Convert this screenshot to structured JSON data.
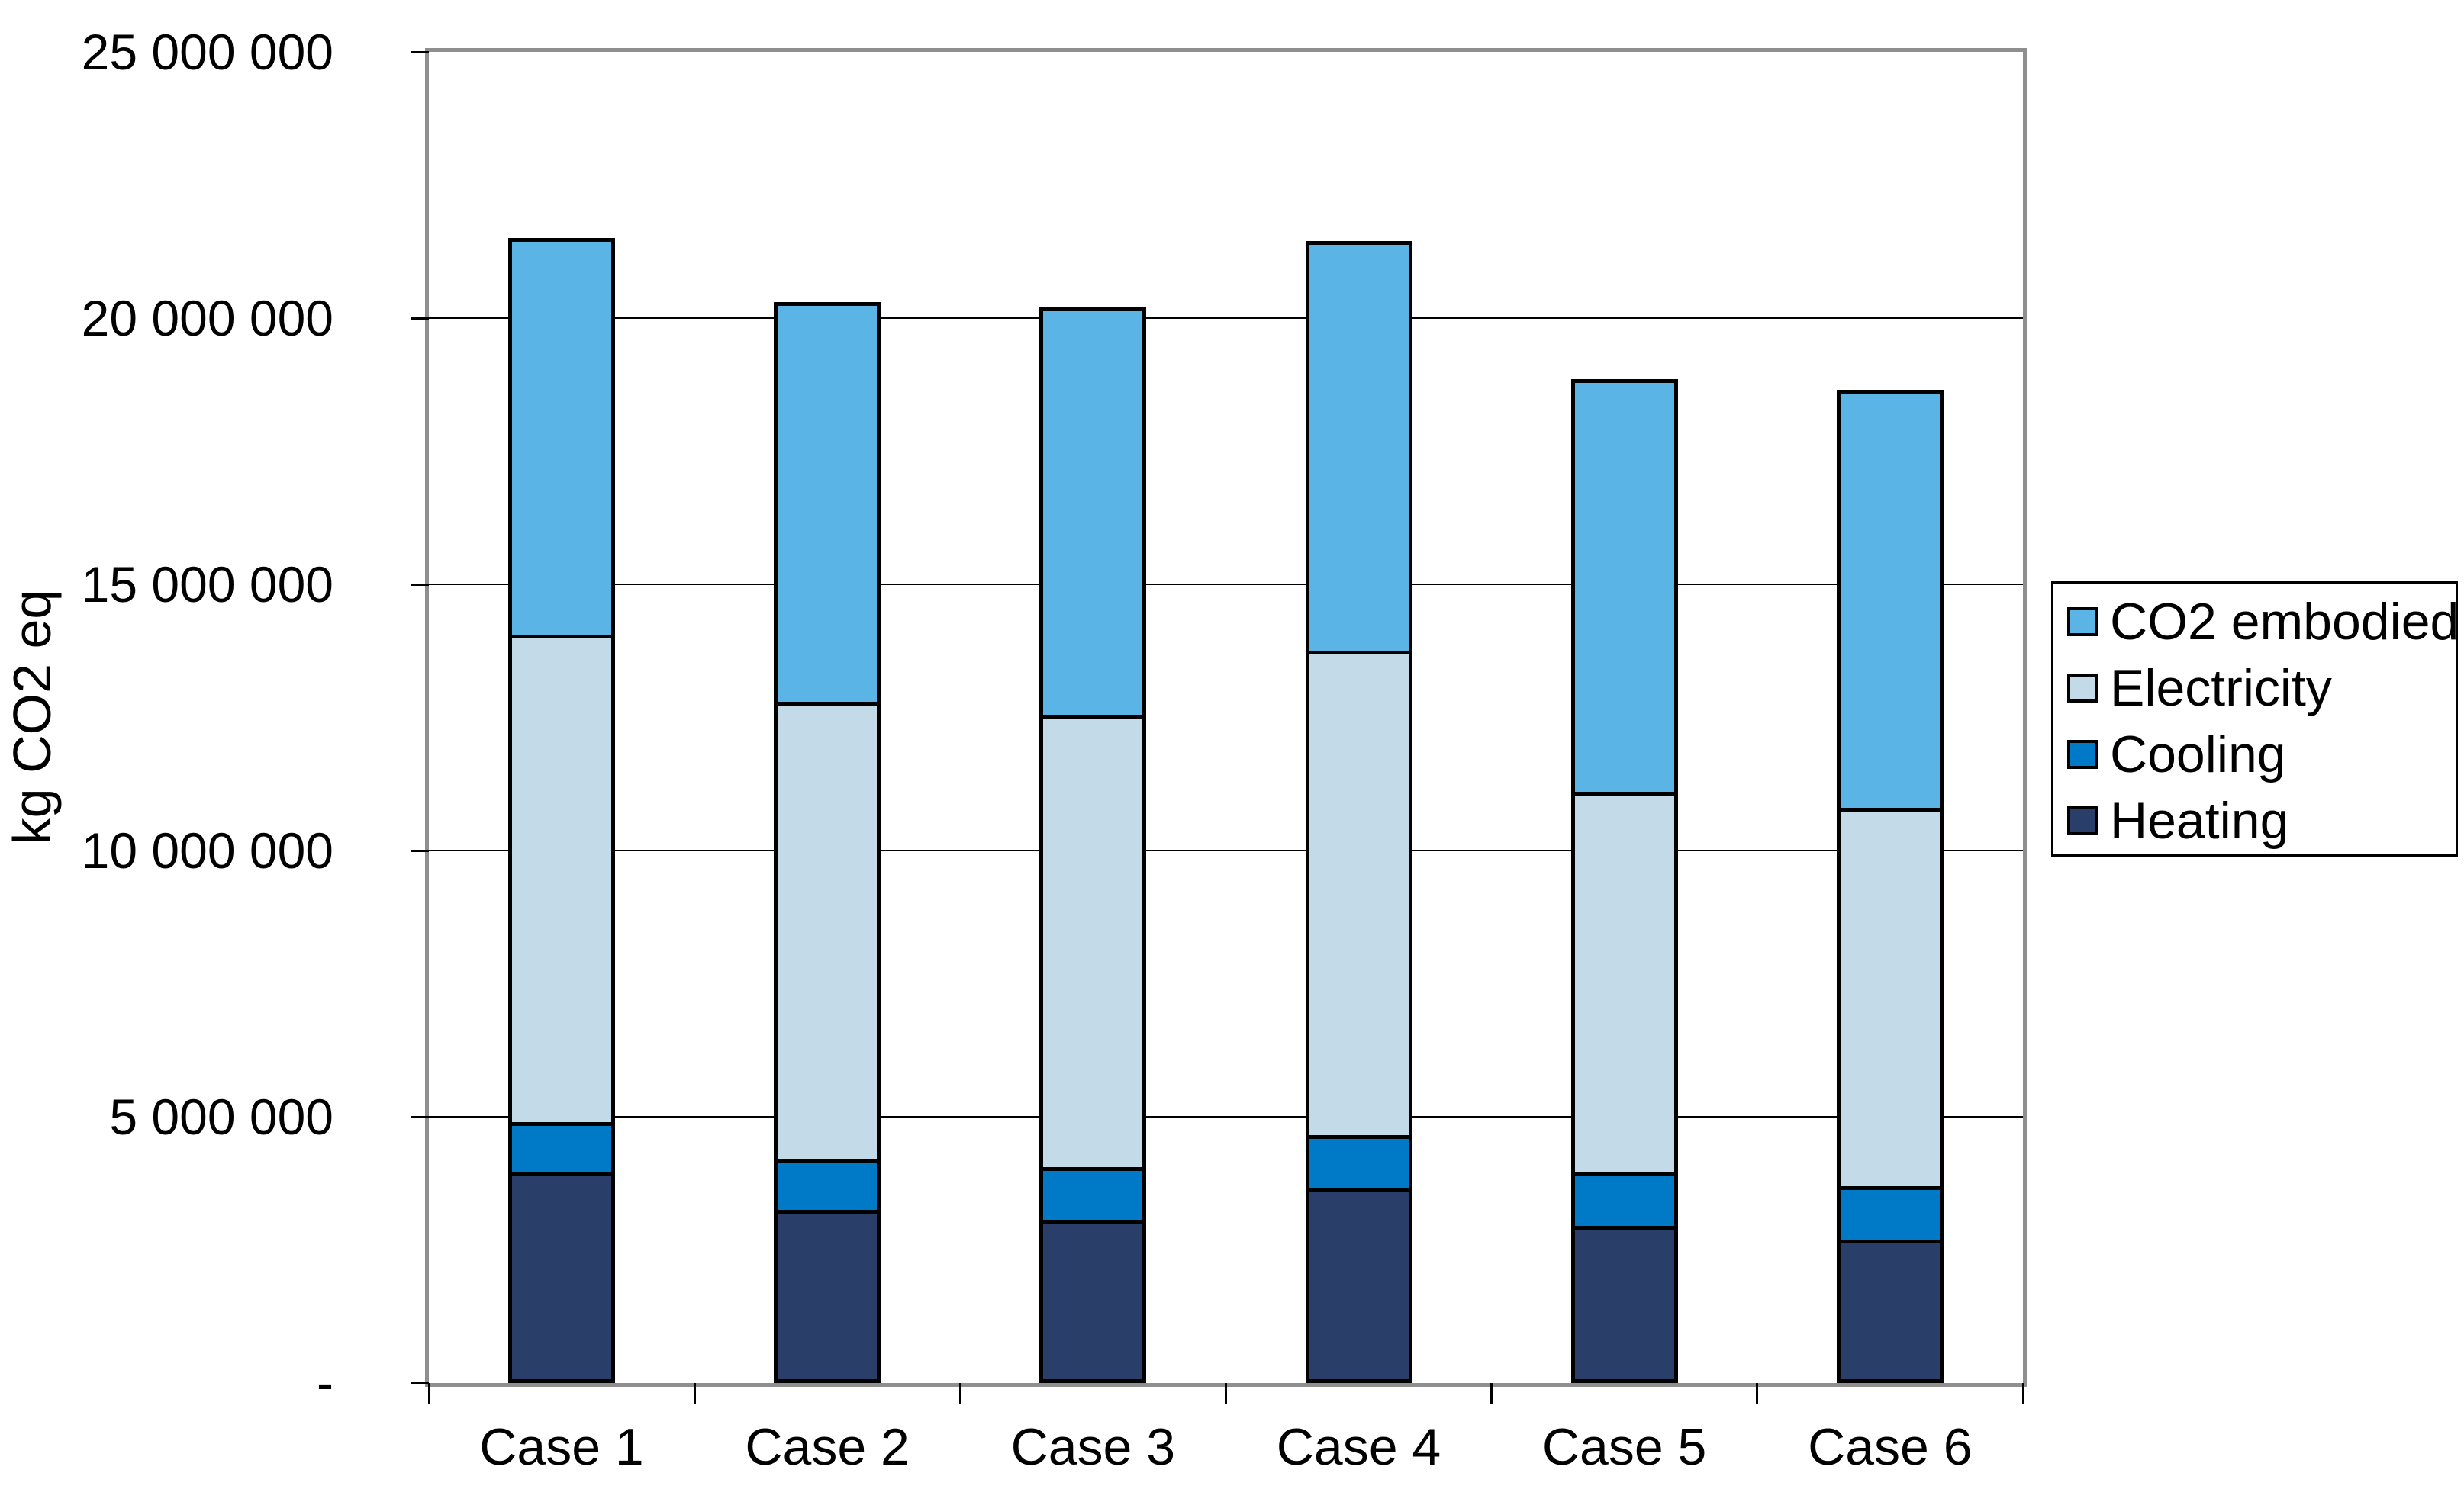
{
  "chart_data": {
    "type": "bar",
    "stacked": true,
    "title": "",
    "ylabel": "kg CO2 eq",
    "xlabel": "",
    "ylim": [
      0,
      25000000
    ],
    "grid": true,
    "legend_position": "right",
    "categories": [
      "Case 1",
      "Case 2",
      "Case 3",
      "Case 4",
      "Case 5",
      "Case 6"
    ],
    "yticks": [
      {
        "label": "25 000 000",
        "value": 25000000
      },
      {
        "label": "20 000 000",
        "value": 20000000
      },
      {
        "label": "15 000 000",
        "value": 15000000
      },
      {
        "label": "10 000 000",
        "value": 10000000
      },
      {
        "label": "5 000 000",
        "value": 5000000
      },
      {
        "label": "-",
        "value": 0
      }
    ],
    "series": [
      {
        "name": "Heating",
        "color": "#293E68",
        "values": [
          3950000,
          3250000,
          3050000,
          3650000,
          2950000,
          2700000
        ]
      },
      {
        "name": "Cooling",
        "color": "#0079C6",
        "values": [
          950000,
          950000,
          1000000,
          1000000,
          1000000,
          1000000
        ]
      },
      {
        "name": "Electricity",
        "color": "#C3DBE8",
        "values": [
          9150000,
          8600000,
          8500000,
          9100000,
          7150000,
          7100000
        ]
      },
      {
        "name": "CO2 embodied",
        "color": "#5AB4E6",
        "values": [
          7450000,
          7500000,
          7650000,
          7700000,
          7750000,
          7850000
        ]
      }
    ],
    "totals": [
      21500000,
      20300000,
      20200000,
      21450000,
      18850000,
      18650000
    ],
    "legend_items": [
      "CO2 embodied",
      "Electricity",
      "Cooling",
      "Heating"
    ]
  }
}
